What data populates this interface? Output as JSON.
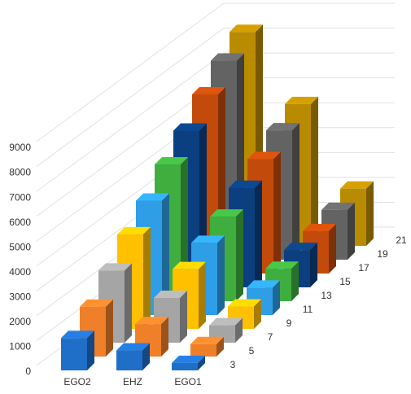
{
  "chart_data": {
    "type": "bar3d",
    "categories": [
      "EGO2",
      "EHZ",
      "EGO1"
    ],
    "series": [
      {
        "name": "3",
        "color": "#1f6fc9",
        "values": [
          1300,
          800,
          300
        ]
      },
      {
        "name": "5",
        "color": "#f07f2a",
        "values": [
          2000,
          1300,
          500
        ]
      },
      {
        "name": "7",
        "color": "#a5a5a5",
        "values": [
          2900,
          1800,
          700
        ]
      },
      {
        "name": "9",
        "color": "#ffc000",
        "values": [
          3800,
          2400,
          900
        ]
      },
      {
        "name": "11",
        "color": "#2e9ee6",
        "values": [
          4600,
          2900,
          1100
        ]
      },
      {
        "name": "13",
        "color": "#3fae3f",
        "values": [
          5500,
          3400,
          1300
        ]
      },
      {
        "name": "15",
        "color": "#0b3f7f",
        "values": [
          6300,
          4000,
          1500
        ]
      },
      {
        "name": "17",
        "color": "#c24a0a",
        "values": [
          7200,
          4600,
          1700
        ]
      },
      {
        "name": "19",
        "color": "#636363",
        "values": [
          8000,
          5200,
          2000
        ]
      },
      {
        "name": "21",
        "color": "#b98b00",
        "values": [
          8600,
          5700,
          2300
        ]
      }
    ],
    "ylim": [
      0,
      9000
    ],
    "yticks": [
      0,
      1000,
      2000,
      3000,
      4000,
      5000,
      6000,
      7000,
      8000,
      9000
    ],
    "grid": true
  }
}
